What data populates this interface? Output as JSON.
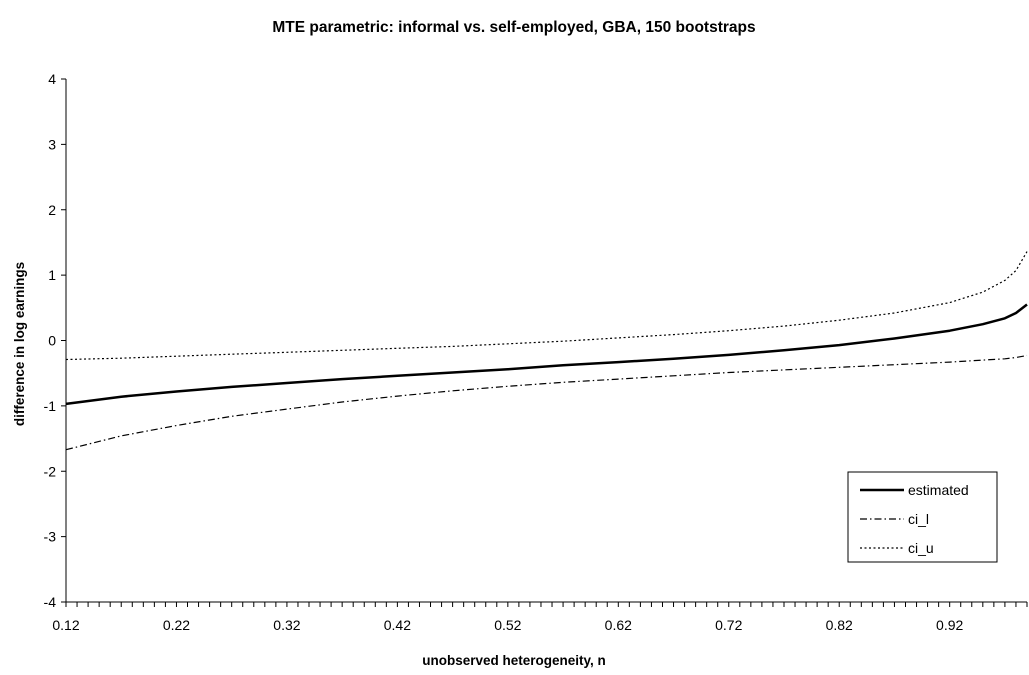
{
  "chart_data": {
    "type": "line",
    "title": "MTE parametric: informal vs. self-employed, GBA, 150 bootstraps",
    "xlabel": "unobserved heterogeneity, n",
    "ylabel": "difference in log earnings",
    "xlim": [
      0.12,
      0.99
    ],
    "ylim": [
      -4,
      4
    ],
    "x_ticks": [
      0.12,
      0.22,
      0.32,
      0.42,
      0.52,
      0.62,
      0.72,
      0.82,
      0.92
    ],
    "x_tick_labels": [
      "0.12",
      "0.22",
      "0.32",
      "0.42",
      "0.52",
      "0.62",
      "0.72",
      "0.82",
      "0.92"
    ],
    "x_minor_step": 0.01,
    "y_ticks": [
      -4,
      -3,
      -2,
      -1,
      0,
      1,
      2,
      3,
      4
    ],
    "y_tick_labels": [
      "-4",
      "-3",
      "-2",
      "-1",
      "0",
      "1",
      "2",
      "3",
      "4"
    ],
    "grid": false,
    "legend_position": "bottom-right",
    "x": [
      0.12,
      0.17,
      0.22,
      0.27,
      0.32,
      0.37,
      0.42,
      0.47,
      0.52,
      0.57,
      0.62,
      0.67,
      0.72,
      0.77,
      0.82,
      0.87,
      0.92,
      0.95,
      0.97,
      0.98,
      0.99
    ],
    "series": [
      {
        "name": "estimated",
        "style": "solid",
        "values": [
          -0.97,
          -0.86,
          -0.78,
          -0.71,
          -0.65,
          -0.59,
          -0.54,
          -0.49,
          -0.44,
          -0.38,
          -0.33,
          -0.28,
          -0.22,
          -0.15,
          -0.07,
          0.03,
          0.15,
          0.25,
          0.34,
          0.42,
          0.55
        ]
      },
      {
        "name": "ci_l",
        "style": "dashdot",
        "values": [
          -1.67,
          -1.46,
          -1.3,
          -1.16,
          -1.05,
          -0.94,
          -0.85,
          -0.77,
          -0.7,
          -0.64,
          -0.59,
          -0.54,
          -0.49,
          -0.45,
          -0.41,
          -0.37,
          -0.33,
          -0.3,
          -0.28,
          -0.26,
          -0.23
        ]
      },
      {
        "name": "ci_u",
        "style": "dotted",
        "values": [
          -0.29,
          -0.27,
          -0.24,
          -0.21,
          -0.18,
          -0.15,
          -0.12,
          -0.09,
          -0.05,
          -0.01,
          0.04,
          0.09,
          0.15,
          0.22,
          0.31,
          0.42,
          0.58,
          0.74,
          0.92,
          1.07,
          1.36
        ]
      }
    ]
  }
}
